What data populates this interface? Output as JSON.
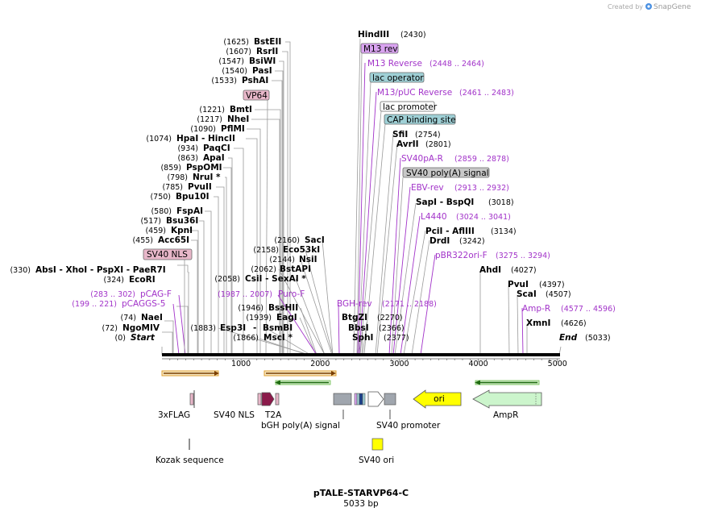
{
  "brand": {
    "prefix": "Created by",
    "name": "SnapGene"
  },
  "plasmid": {
    "name": "pTALE-STARVP64-C",
    "length_label": "5033 bp",
    "length": 5033
  },
  "ruler": {
    "ticks": [
      1000,
      2000,
      3000,
      4000,
      5000
    ],
    "labels": [
      "1000",
      "2000",
      "3000",
      "4000",
      "5000"
    ]
  },
  "sites": [
    {
      "name": "Start",
      "num": "(0)",
      "pos": 0,
      "italic": true
    },
    {
      "name": "NgoMIV",
      "num": "(72)",
      "pos": 72
    },
    {
      "name": "NaeI",
      "num": "(74)",
      "pos": 74
    },
    {
      "name": "EcoRI",
      "num": "(324)",
      "pos": 324
    },
    {
      "name": "AbsI  - XhoI  - PspXI  - PaeR7I",
      "num": "(330)",
      "pos": 330
    },
    {
      "name": "Acc65I",
      "num": "(455)",
      "pos": 455
    },
    {
      "name": "KpnI",
      "num": "(459)",
      "pos": 459
    },
    {
      "name": "Bsu36I",
      "num": "(517)",
      "pos": 517
    },
    {
      "name": "FspAI",
      "num": "(580)",
      "pos": 580
    },
    {
      "name": "Bpu10I",
      "num": "(750)",
      "pos": 750
    },
    {
      "name": "PvuII",
      "num": "(785)",
      "pos": 785
    },
    {
      "name": "NruI *",
      "num": "(798)",
      "pos": 798
    },
    {
      "name": "PspOMI",
      "num": "(859)",
      "pos": 859
    },
    {
      "name": "ApaI",
      "num": "(863)",
      "pos": 863
    },
    {
      "name": "PaqCI",
      "num": "(934)",
      "pos": 934
    },
    {
      "name": "HpaI  - HincII",
      "num": "(1074)",
      "pos": 1074
    },
    {
      "name": "PflMI",
      "num": "(1090)",
      "pos": 1090
    },
    {
      "name": "NheI",
      "num": "(1217)",
      "pos": 1217
    },
    {
      "name": "BmtI",
      "num": "(1221)",
      "pos": 1221
    },
    {
      "name": "PshAI",
      "num": "(1533)",
      "pos": 1533
    },
    {
      "name": "PasI",
      "num": "(1540)",
      "pos": 1540
    },
    {
      "name": "BsiWI",
      "num": "(1547)",
      "pos": 1547
    },
    {
      "name": "RsrII",
      "num": "(1607)",
      "pos": 1607
    },
    {
      "name": "BstEII",
      "num": "(1625)",
      "pos": 1625
    },
    {
      "name": "Esp3I",
      "num": "(1883)",
      "pos": 1883
    },
    {
      "name": "MscI *",
      "num": "(1866)",
      "pos": 1866
    },
    {
      "name": "BsmBI",
      "num": "",
      "pos": 1883
    },
    {
      "name": "EagI",
      "num": "(1939)",
      "pos": 1939
    },
    {
      "name": "BssHII",
      "num": "(1946)",
      "pos": 1946
    },
    {
      "name": "CsiI  - SexAI *",
      "num": "(2058)",
      "pos": 2058
    },
    {
      "name": "BstAPI",
      "num": "(2062)",
      "pos": 2062
    },
    {
      "name": "NsiI",
      "num": "(2144)",
      "pos": 2144
    },
    {
      "name": "Eco53kI",
      "num": "(2158)",
      "pos": 2158
    },
    {
      "name": "SacI",
      "num": "(2160)",
      "pos": 2160
    },
    {
      "name": "HindIII",
      "num": "(2430)",
      "pos": 2430
    },
    {
      "name": "BtgZI",
      "num": "(2270)",
      "pos": 2270
    },
    {
      "name": "BbsI",
      "num": "(2366)",
      "pos": 2366
    },
    {
      "name": "SphI",
      "num": "(2377)",
      "pos": 2377
    },
    {
      "name": "SfiI",
      "num": "(2754)",
      "pos": 2754
    },
    {
      "name": "AvrII",
      "num": "(2801)",
      "pos": 2801
    },
    {
      "name": "SapI  - BspQI",
      "num": "(3018)",
      "pos": 3018
    },
    {
      "name": "PciI  - AflIII",
      "num": "(3134)",
      "pos": 3134
    },
    {
      "name": "DrdI",
      "num": "(3242)",
      "pos": 3242
    },
    {
      "name": "AhdI",
      "num": "(4027)",
      "pos": 4027
    },
    {
      "name": "PvuI",
      "num": "(4397)",
      "pos": 4397
    },
    {
      "name": "ScaI",
      "num": "(4507)",
      "pos": 4507
    },
    {
      "name": "XmnI",
      "num": "(4626)",
      "pos": 4626
    },
    {
      "name": "End",
      "num": "(5033)",
      "pos": 5033,
      "italic": true
    }
  ],
  "primers": [
    {
      "name": "pCAGGS-5",
      "range": "(199 .. 221)",
      "pos": 210
    },
    {
      "name": "pCAG-F",
      "range": "(283 .. 302)",
      "pos": 292
    },
    {
      "name": "Puro-F",
      "range": "(1987 .. 2007)",
      "pos": 1997
    },
    {
      "name": "BGH-rev",
      "range": "(2171 .. 2188)",
      "pos": 2180
    },
    {
      "name": "M13 Reverse",
      "range": "(2448 .. 2464)",
      "pos": 2456
    },
    {
      "name": "M13/pUC Reverse",
      "range": "(2461 .. 2483)",
      "pos": 2472
    },
    {
      "name": "SV40pA-R",
      "range": "(2859 .. 2878)",
      "pos": 2868
    },
    {
      "name": "EBV-rev",
      "range": "(2913 .. 2932)",
      "pos": 2922
    },
    {
      "name": "L4440",
      "range": "(3024 .. 3041)",
      "pos": 3032
    },
    {
      "name": "pBR322ori-F",
      "range": "(3275 .. 3294)",
      "pos": 3284
    },
    {
      "name": "Amp-R",
      "range": "(4577 .. 4596)",
      "pos": 4586
    }
  ],
  "boxed_labels": [
    {
      "name": "SV40 NLS",
      "color": "#e8b7c9"
    },
    {
      "name": "VP64",
      "color": "#e8b7c9"
    },
    {
      "name": "M13 rev",
      "color": "#d9a3f0"
    },
    {
      "name": "lac operator",
      "color": "#9fd0d6"
    },
    {
      "name": "lac promoter",
      "color": "#ffffff"
    },
    {
      "name": "CAP binding site",
      "color": "#9fd0d6"
    },
    {
      "name": "SV40 poly(A) signal",
      "color": "#c8c8c8"
    }
  ],
  "features": [
    {
      "name": "3xFLAG"
    },
    {
      "name": "SV40 NLS"
    },
    {
      "name": "T2A"
    },
    {
      "name": "bGH poly(A) signal"
    },
    {
      "name": "SV40 promoter"
    },
    {
      "name": "ori"
    },
    {
      "name": "AmpR"
    },
    {
      "name": "Kozak sequence"
    },
    {
      "name": "SV40 ori"
    }
  ],
  "colors": {
    "primer": "#a233c9",
    "ori": "#ffff00",
    "ampr": "#ccf5cc",
    "orange": "#f5a623",
    "green": "#3f9f1f"
  }
}
